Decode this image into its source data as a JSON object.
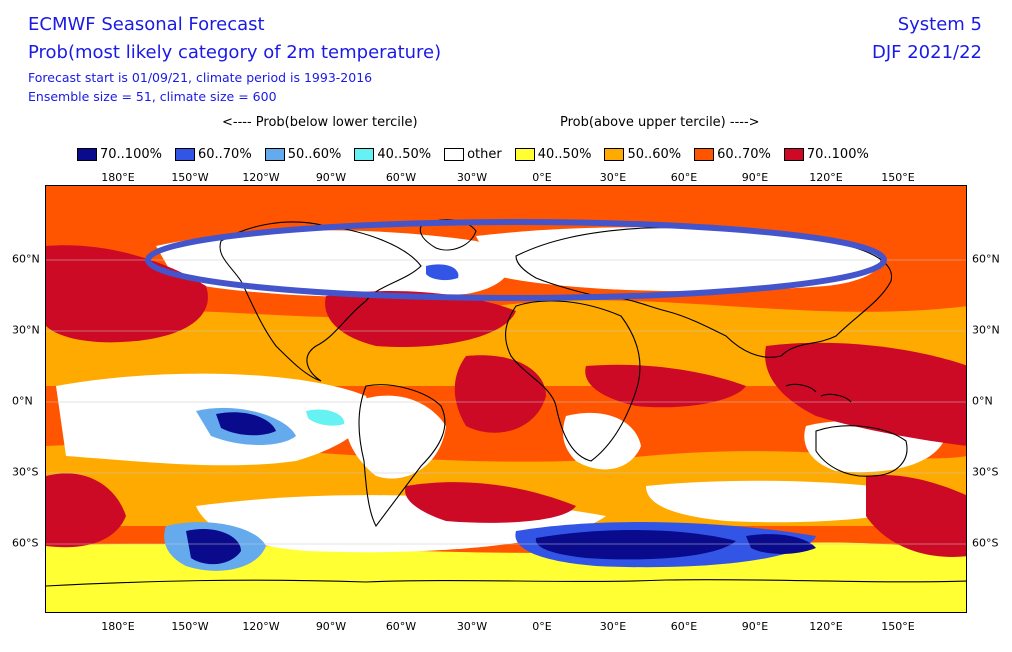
{
  "header": {
    "title": "ECMWF Seasonal Forecast",
    "subtitle": "Prob(most likely category of 2m temperature)",
    "line3": "Forecast start is 01/09/21, climate period is 1993-2016",
    "line4": "Ensemble size = 51, climate size = 600",
    "system": "System 5",
    "season": "DJF 2021/22"
  },
  "legend": {
    "below_label": "<---- Prob(below lower tercile)",
    "above_label": "Prob(above upper tercile) ---->",
    "items": [
      {
        "label": "70..100%",
        "color": "#0a0a8c"
      },
      {
        "label": "60..70%",
        "color": "#3355e6"
      },
      {
        "label": "50..60%",
        "color": "#66aaee"
      },
      {
        "label": "40..50%",
        "color": "#66f2f2"
      },
      {
        "label": "other",
        "color": "#ffffff"
      },
      {
        "label": "40..50%",
        "color": "#ffff33"
      },
      {
        "label": "50..60%",
        "color": "#ffaa00"
      },
      {
        "label": "60..70%",
        "color": "#ff5500"
      },
      {
        "label": "70..100%",
        "color": "#cc0a26"
      }
    ]
  },
  "axes": {
    "lon_labels": [
      "180°E",
      "150°W",
      "120°W",
      "90°W",
      "60°W",
      "30°W",
      "0°E",
      "30°E",
      "60°E",
      "90°E",
      "120°E",
      "150°E"
    ],
    "lat_labels": [
      "60°N",
      "30°N",
      "0°N",
      "30°S",
      "60°S"
    ]
  },
  "colors": {
    "annotation_ellipse": "#4455cc",
    "coastline": "#000000",
    "text_blue": "#1a1ae6"
  }
}
